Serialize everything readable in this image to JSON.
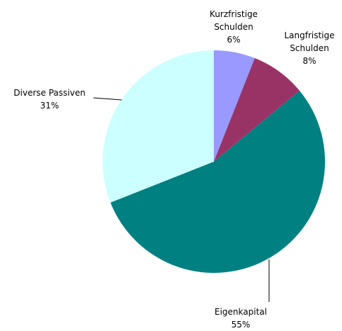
{
  "chart_data": {
    "type": "pie",
    "categories": [
      "Kurzfristige Schulden",
      "Langfristige Schulden",
      "Eigenkapital",
      "Diverse Passiven"
    ],
    "values": [
      6,
      8,
      55,
      31
    ],
    "value_labels": [
      "6%",
      "8%",
      "55%",
      "31%"
    ],
    "colors": [
      "#9999ff",
      "#993366",
      "#008080",
      "#ccffff"
    ]
  }
}
